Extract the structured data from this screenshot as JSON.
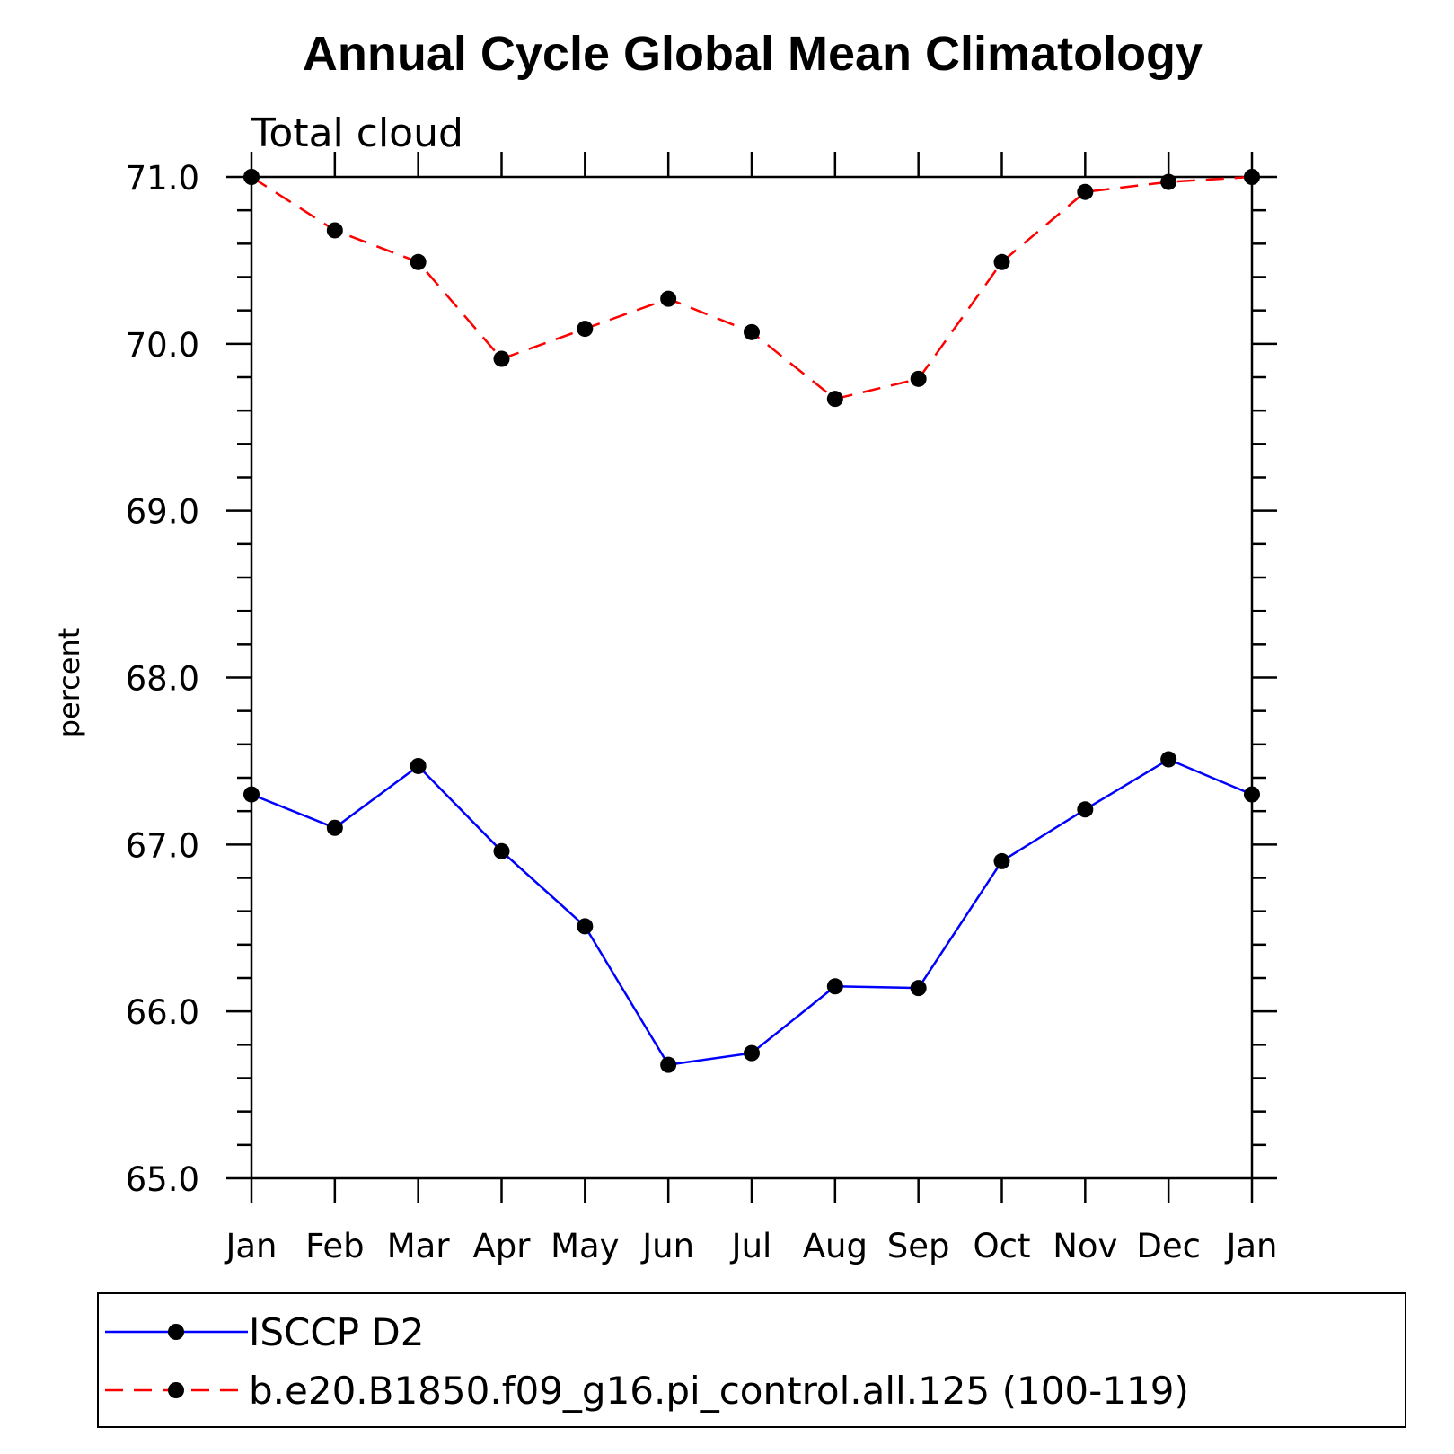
{
  "chart_data": {
    "type": "line",
    "title": "Annual Cycle Global Mean Climatology",
    "subtitle": "Total cloud",
    "ylabel": "percent",
    "xlabel": "",
    "ylim": [
      65.0,
      71.0
    ],
    "yticks": [
      "65.0",
      "66.0",
      "67.0",
      "68.0",
      "69.0",
      "70.0",
      "71.0"
    ],
    "categories": [
      "Jan",
      "Feb",
      "Mar",
      "Apr",
      "May",
      "Jun",
      "Jul",
      "Aug",
      "Sep",
      "Oct",
      "Nov",
      "Dec",
      "Jan"
    ],
    "grid": false,
    "legend_position": "bottom",
    "series": [
      {
        "name": "ISCCP D2",
        "color": "#0000ff",
        "line_style": "solid",
        "marker": "filled-circle",
        "values": [
          67.3,
          67.1,
          67.47,
          66.96,
          66.51,
          65.68,
          65.75,
          66.15,
          66.14,
          66.9,
          67.21,
          67.51,
          67.3
        ]
      },
      {
        "name": "b.e20.B1850.f09_g16.pi_control.all.125 (100-119)",
        "color": "#ff0000",
        "line_style": "dashed",
        "marker": "filled-circle",
        "values": [
          71.0,
          70.68,
          70.49,
          69.91,
          70.09,
          70.27,
          70.07,
          69.67,
          69.79,
          70.49,
          70.91,
          70.97,
          71.0
        ]
      }
    ]
  }
}
